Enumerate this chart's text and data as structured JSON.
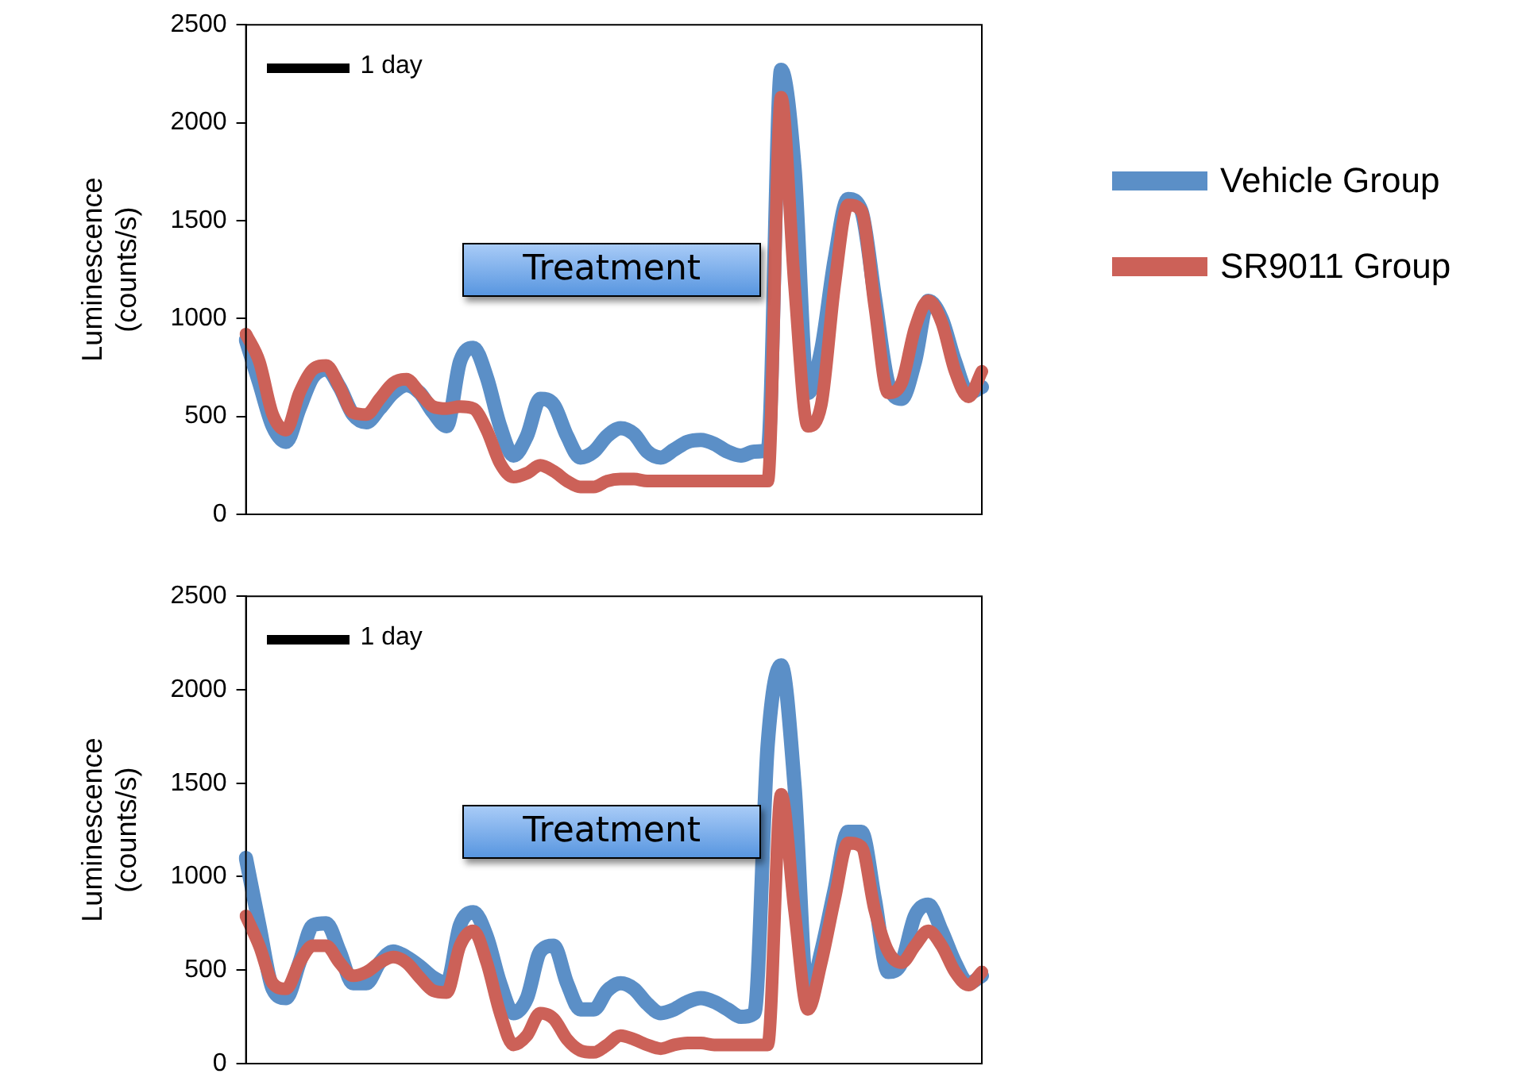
{
  "chart_data": [
    {
      "type": "line",
      "ylabel": "Luminescence (counts/s)",
      "annotations": [
        "1 day",
        "Treatment"
      ],
      "categories": [
        null,
        null,
        null,
        null,
        null,
        null,
        null,
        null,
        null,
        null,
        null,
        null,
        null,
        null,
        null,
        null,
        null,
        null,
        null,
        null,
        null,
        null,
        null,
        null,
        null,
        null,
        null,
        null,
        null,
        null,
        null,
        null,
        null,
        null,
        null,
        null,
        null,
        null,
        null,
        null,
        null,
        null,
        null,
        null,
        null,
        null,
        null,
        null,
        null,
        null,
        null,
        null,
        null,
        null,
        null,
        null
      ],
      "series": [
        {
          "name": "Vehicle Group",
          "color": "#5b8fc7",
          "values": [
            890,
            670,
            450,
            370,
            540,
            700,
            740,
            650,
            510,
            470,
            540,
            620,
            660,
            620,
            520,
            450,
            780,
            850,
            700,
            450,
            300,
            400,
            590,
            560,
            400,
            290,
            320,
            400,
            440,
            410,
            320,
            290,
            330,
            370,
            380,
            360,
            320,
            300,
            320,
            330,
            2270,
            1770,
            620,
            840,
            1300,
            1610,
            1550,
            1110,
            670,
            590,
            780,
            1090,
            1000,
            780,
            620,
            650
          ]
        },
        {
          "name": "SR9011 Group",
          "color": "#cc6158",
          "values": [
            920,
            780,
            510,
            430,
            620,
            740,
            760,
            650,
            520,
            510,
            590,
            670,
            690,
            620,
            550,
            540,
            550,
            540,
            430,
            260,
            190,
            210,
            250,
            220,
            170,
            140,
            140,
            170,
            180,
            180,
            170,
            170,
            170,
            170,
            170,
            170,
            170,
            170,
            170,
            170,
            2130,
            1170,
            450,
            560,
            1170,
            1580,
            1550,
            1060,
            620,
            670,
            950,
            1090,
            980,
            730,
            600,
            730
          ]
        }
      ],
      "ylim": [
        0,
        2500
      ],
      "yticks": [
        0,
        500,
        1000,
        1500,
        2000,
        2500
      ],
      "tick_labels": "y",
      "legend": "right"
    },
    {
      "type": "line",
      "ylabel": "Luminescence (counts/s)",
      "annotations": [
        "1 day",
        "Treatment"
      ],
      "categories": [
        null,
        null,
        null,
        null,
        null,
        null,
        null,
        null,
        null,
        null,
        null,
        null,
        null,
        null,
        null,
        null,
        null,
        null,
        null,
        null,
        null,
        null,
        null,
        null,
        null,
        null,
        null,
        null,
        null,
        null,
        null,
        null,
        null,
        null,
        null,
        null,
        null,
        null,
        null,
        null,
        null,
        null,
        null,
        null,
        null,
        null,
        null,
        null,
        null,
        null,
        null,
        null,
        null,
        null,
        null,
        null
      ],
      "series": [
        {
          "color": "#5b8fc7",
          "values": [
            1100,
            740,
            400,
            350,
            540,
            740,
            750,
            600,
            430,
            430,
            540,
            600,
            570,
            520,
            460,
            430,
            740,
            810,
            680,
            430,
            270,
            350,
            600,
            630,
            430,
            290,
            290,
            390,
            430,
            400,
            320,
            270,
            290,
            330,
            350,
            330,
            290,
            250,
            270,
            1710,
            2130,
            1490,
            350,
            600,
            930,
            1240,
            1240,
            880,
            490,
            540,
            790,
            850,
            710,
            540,
            430,
            470
          ]
        },
        {
          "color": "#cc6158",
          "values": [
            790,
            630,
            430,
            400,
            540,
            630,
            630,
            540,
            470,
            490,
            540,
            570,
            540,
            460,
            390,
            380,
            630,
            710,
            540,
            270,
            100,
            150,
            270,
            240,
            130,
            70,
            60,
            100,
            150,
            130,
            100,
            80,
            100,
            110,
            110,
            100,
            100,
            100,
            100,
            100,
            1440,
            820,
            290,
            540,
            880,
            1180,
            1160,
            820,
            600,
            540,
            630,
            710,
            630,
            490,
            420,
            490
          ]
        }
      ],
      "ylim": [
        0,
        2500
      ],
      "yticks": [
        0,
        500,
        1000,
        1500,
        2000,
        2500
      ],
      "tick_labels": "y"
    }
  ]
}
